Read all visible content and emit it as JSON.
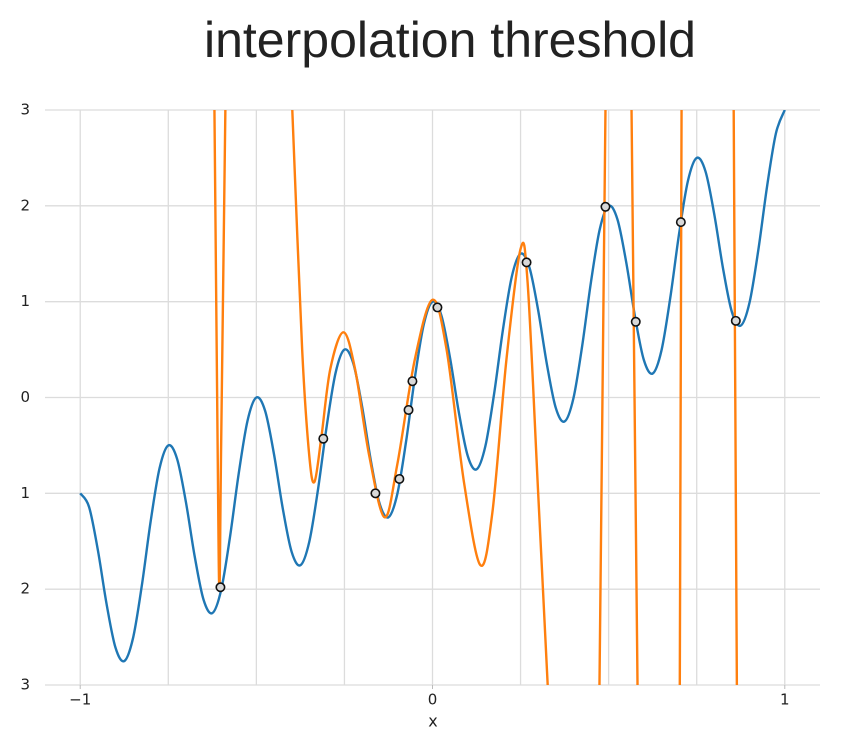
{
  "chart_data": {
    "type": "line",
    "title": "interpolation threshold",
    "xlabel": "x",
    "xlim": [
      -1.1,
      1.1
    ],
    "ylim": [
      -3,
      3
    ],
    "xticks": [
      {
        "value": -1,
        "label": "−1"
      },
      0,
      1
    ],
    "xgrid": [
      -1,
      -0.75,
      -0.5,
      -0.25,
      0,
      0.25,
      0.5,
      0.75,
      1
    ],
    "yticks": [
      {
        "value": -3,
        "label": "3"
      },
      {
        "value": -2,
        "label": "2"
      },
      {
        "value": -1,
        "label": "1"
      },
      0,
      1,
      2,
      3
    ],
    "grid": true,
    "series": [
      {
        "color": "#1f77b4",
        "x": [
          -1,
          -0.975,
          -0.95,
          -0.925,
          -0.9,
          -0.875,
          -0.85,
          -0.825,
          -0.8,
          -0.775,
          -0.75,
          -0.725,
          -0.7,
          -0.675,
          -0.65,
          -0.625,
          -0.6,
          -0.575,
          -0.55,
          -0.525,
          -0.5,
          -0.475,
          -0.45,
          -0.425,
          -0.4,
          -0.375,
          -0.35,
          -0.325,
          -0.3,
          -0.275,
          -0.25,
          -0.225,
          -0.2,
          -0.175,
          -0.15,
          -0.125,
          -0.1,
          -0.075,
          -0.05,
          -0.025,
          0,
          0.025,
          0.05,
          0.075,
          0.1,
          0.125,
          0.15,
          0.175,
          0.2,
          0.225,
          0.25,
          0.275,
          0.3,
          0.325,
          0.35,
          0.375,
          0.4,
          0.425,
          0.45,
          0.475,
          0.5,
          0.525,
          0.55,
          0.575,
          0.6,
          0.625,
          0.65,
          0.675,
          0.7,
          0.725,
          0.75,
          0.775,
          0.8,
          0.825,
          0.85,
          0.875,
          0.9,
          0.925,
          0.95,
          0.975,
          1
        ],
        "values": [
          -1,
          -1.141,
          -1.591,
          -2.159,
          -2.609,
          -2.75,
          -2.509,
          -1.959,
          -1.291,
          -0.741,
          -0.5,
          -0.641,
          -1.091,
          -1.659,
          -2.109,
          -2.25,
          -2.009,
          -1.459,
          -0.791,
          -0.241,
          0,
          -0.141,
          -0.591,
          -1.159,
          -1.609,
          -1.75,
          -1.509,
          -0.959,
          -0.291,
          0.259,
          0.5,
          0.359,
          -0.091,
          -0.659,
          -1.109,
          -1.25,
          -1.009,
          -0.459,
          0.209,
          0.759,
          1,
          0.859,
          0.409,
          -0.159,
          -0.609,
          -0.75,
          -0.509,
          0.041,
          0.709,
          1.259,
          1.5,
          1.359,
          0.909,
          0.341,
          -0.109,
          -0.25,
          -0.009,
          0.541,
          1.209,
          1.759,
          2,
          1.859,
          1.409,
          0.841,
          0.391,
          0.25,
          0.491,
          1.041,
          1.709,
          2.259,
          2.5,
          2.359,
          1.909,
          1.341,
          0.891,
          0.75,
          0.991,
          1.541,
          2.209,
          2.759,
          3
        ]
      },
      {
        "color": "#ff7f0e",
        "x": [
          -0.619,
          -0.61,
          -0.605,
          -0.6,
          -0.588,
          -0.5,
          -0.398,
          -0.37,
          -0.35,
          -0.335,
          -0.315,
          -0.29,
          -0.253,
          -0.22,
          -0.18,
          -0.136,
          -0.1,
          -0.05,
          0,
          0.04,
          0.09,
          0.136,
          0.17,
          0.21,
          0.25,
          0.27,
          0.3,
          0.327,
          0.4,
          0.474,
          0.491,
          0.53,
          0.565,
          0.582,
          0.65,
          0.702,
          0.707,
          0.8,
          0.855,
          0.864
        ],
        "values": [
          3,
          -0.5,
          -2,
          -0.5,
          3,
          null,
          3,
          0.5,
          -0.6,
          -0.88,
          -0.4,
          0.3,
          0.68,
          0.3,
          -0.6,
          -1.25,
          -0.7,
          0.4,
          1.02,
          0.5,
          -0.9,
          -1.75,
          -1.2,
          0.4,
          1.55,
          1.2,
          -1,
          -3,
          null,
          -3,
          3,
          null,
          3,
          -3,
          null,
          -3,
          3,
          null,
          3,
          -3
        ]
      }
    ],
    "points": {
      "x": [
        -0.602,
        -0.31,
        -0.162,
        -0.094,
        -0.068,
        -0.057,
        0.014,
        0.267,
        0.491,
        0.577,
        0.705,
        0.861
      ],
      "values": [
        -1.98,
        -0.43,
        -1,
        -0.85,
        -0.13,
        0.17,
        0.94,
        1.41,
        1.99,
        0.79,
        1.83,
        0.8
      ]
    }
  }
}
